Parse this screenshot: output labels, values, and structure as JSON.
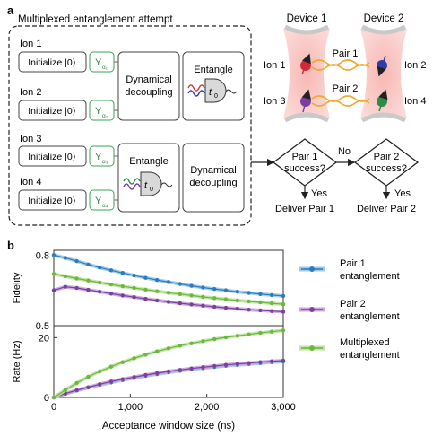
{
  "panel_a": {
    "label": "a",
    "box_title": "Multiplexed entanglement attempt",
    "ions": [
      {
        "label": "Ion 1",
        "init": "Initialize |0⟩",
        "gate": "Y",
        "gate_sub": "α₁"
      },
      {
        "label": "Ion 2",
        "init": "Initialize |0⟩",
        "gate": "Y",
        "gate_sub": "α₂"
      },
      {
        "label": "Ion 3",
        "init": "Initialize |0⟩",
        "gate": "Y",
        "gate_sub": "α₃"
      },
      {
        "label": "Ion 4",
        "init": "Initialize |0⟩",
        "gate": "Y",
        "gate_sub": "α₄"
      }
    ],
    "dd_top": [
      "Dynamical",
      "decoupling"
    ],
    "entangle_top": "Entangle",
    "entangle_bottom": "Entangle",
    "dd_bottom": [
      "Dynamical",
      "decoupling"
    ],
    "t0": "t",
    "t0_sub": "0",
    "device1": "Device 1",
    "device2": "Device 2",
    "pair1": "Pair 1",
    "pair2": "Pair 2",
    "dev_ion1": "Ion 1",
    "dev_ion2": "Ion 2",
    "dev_ion3": "Ion 3",
    "dev_ion4": "Ion 4",
    "decision1": [
      "Pair 1",
      "success?"
    ],
    "decision2": [
      "Pair 2",
      "success?"
    ],
    "no_label": "No",
    "yes1": "Yes",
    "yes2": "Yes",
    "deliver1": "Deliver Pair 1",
    "deliver2": "Deliver Pair 2"
  },
  "panel_b": {
    "label": "b",
    "xlabel": "Acceptance window size (ns)",
    "legend": [
      {
        "name": [
          "Pair 1",
          "entanglement"
        ],
        "color": "#2b7bbd"
      },
      {
        "name": [
          "Pair 2",
          "entanglement"
        ],
        "color": "#7b3f9e"
      },
      {
        "name": [
          "Multiplexed",
          "entanglement"
        ],
        "color": "#6bb83a"
      }
    ]
  },
  "chart_data": [
    {
      "type": "line",
      "ylabel": "Fidelity",
      "ylim": [
        0.5,
        0.82
      ],
      "xlim": [
        0,
        3000
      ],
      "yticks": [
        "0.8",
        "0.5"
      ],
      "ytick_values": [
        0.8,
        0.5
      ],
      "x": [
        0,
        150,
        300,
        450,
        600,
        750,
        900,
        1050,
        1200,
        1350,
        1500,
        1650,
        1800,
        1950,
        2100,
        2250,
        2400,
        2550,
        2700,
        2850,
        3000
      ],
      "series": [
        {
          "name": "Pair 1 entanglement",
          "color": "#2b7bbd",
          "values": [
            0.8,
            0.788,
            0.774,
            0.76,
            0.747,
            0.735,
            0.724,
            0.713,
            0.703,
            0.694,
            0.685,
            0.677,
            0.669,
            0.662,
            0.656,
            0.65,
            0.644,
            0.639,
            0.634,
            0.63,
            0.626
          ]
        },
        {
          "name": "Pair 2 entanglement",
          "color": "#7b3f9e",
          "values": [
            0.65,
            0.665,
            0.66,
            0.652,
            0.644,
            0.636,
            0.628,
            0.621,
            0.614,
            0.607,
            0.601,
            0.595,
            0.59,
            0.585,
            0.58,
            0.576,
            0.572,
            0.568,
            0.565,
            0.562,
            0.559
          ]
        },
        {
          "name": "Multiplexed entanglement",
          "color": "#6bb83a",
          "values": [
            0.72,
            0.71,
            0.7,
            0.692,
            0.683,
            0.675,
            0.667,
            0.66,
            0.653,
            0.646,
            0.64,
            0.634,
            0.628,
            0.622,
            0.617,
            0.612,
            0.607,
            0.603,
            0.599,
            0.595,
            0.591
          ]
        }
      ]
    },
    {
      "type": "line",
      "ylabel": "Rate (Hz)",
      "ylim": [
        0,
        24
      ],
      "xlim": [
        0,
        3000
      ],
      "yticks": [
        "20",
        "0"
      ],
      "ytick_values": [
        20,
        0
      ],
      "xticks": [
        "0",
        "1,000",
        "2,000",
        "3,000"
      ],
      "xtick_values": [
        0,
        1000,
        2000,
        3000
      ],
      "x": [
        0,
        150,
        300,
        450,
        600,
        750,
        900,
        1050,
        1200,
        1350,
        1500,
        1650,
        1800,
        1950,
        2100,
        2250,
        2400,
        2550,
        2700,
        2850,
        3000
      ],
      "series": [
        {
          "name": "Pair 1 entanglement",
          "color": "#2b7bbd",
          "values": [
            0,
            1.2,
            2.3,
            3.3,
            4.2,
            5.0,
            5.8,
            6.5,
            7.2,
            7.8,
            8.4,
            8.9,
            9.4,
            9.8,
            10.2,
            10.6,
            10.9,
            11.2,
            11.5,
            11.8,
            12.0
          ]
        },
        {
          "name": "Pair 2 entanglement",
          "color": "#7b3f9e",
          "values": [
            0,
            1.3,
            2.4,
            3.4,
            4.4,
            5.3,
            6.1,
            6.8,
            7.5,
            8.1,
            8.7,
            9.2,
            9.7,
            10.1,
            10.5,
            10.9,
            11.2,
            11.5,
            11.8,
            12.1,
            12.3
          ]
        },
        {
          "name": "Multiplexed entanglement",
          "color": "#6bb83a",
          "values": [
            0,
            2.5,
            4.8,
            6.9,
            8.7,
            10.3,
            11.8,
            13.1,
            14.3,
            15.4,
            16.4,
            17.3,
            18.1,
            18.8,
            19.5,
            20.1,
            20.6,
            21.1,
            21.6,
            22.0,
            22.4
          ]
        }
      ]
    }
  ]
}
